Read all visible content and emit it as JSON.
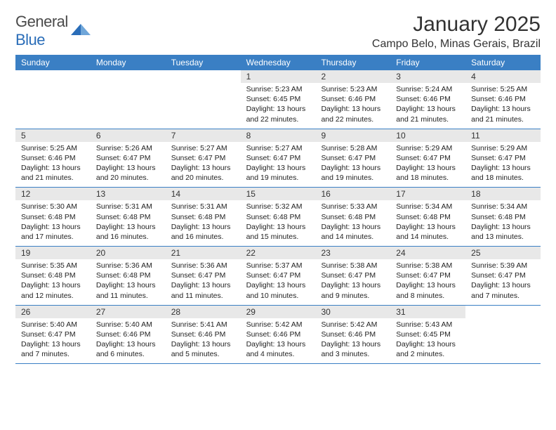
{
  "logo": {
    "text1": "General",
    "text2": "Blue"
  },
  "title": "January 2025",
  "location": "Campo Belo, Minas Gerais, Brazil",
  "colors": {
    "header_bg": "#3a7fc4",
    "header_text": "#ffffff",
    "daynum_bg": "#e8e8e8",
    "border": "#3a7fc4",
    "logo_gray": "#4a4a4a",
    "logo_blue": "#2a6db8"
  },
  "day_headers": [
    "Sunday",
    "Monday",
    "Tuesday",
    "Wednesday",
    "Thursday",
    "Friday",
    "Saturday"
  ],
  "weeks": [
    [
      {
        "n": "",
        "sr": "",
        "ss": "",
        "dl": ""
      },
      {
        "n": "",
        "sr": "",
        "ss": "",
        "dl": ""
      },
      {
        "n": "",
        "sr": "",
        "ss": "",
        "dl": ""
      },
      {
        "n": "1",
        "sr": "5:23 AM",
        "ss": "6:45 PM",
        "dl": "13 hours and 22 minutes."
      },
      {
        "n": "2",
        "sr": "5:23 AM",
        "ss": "6:46 PM",
        "dl": "13 hours and 22 minutes."
      },
      {
        "n": "3",
        "sr": "5:24 AM",
        "ss": "6:46 PM",
        "dl": "13 hours and 21 minutes."
      },
      {
        "n": "4",
        "sr": "5:25 AM",
        "ss": "6:46 PM",
        "dl": "13 hours and 21 minutes."
      }
    ],
    [
      {
        "n": "5",
        "sr": "5:25 AM",
        "ss": "6:46 PM",
        "dl": "13 hours and 21 minutes."
      },
      {
        "n": "6",
        "sr": "5:26 AM",
        "ss": "6:47 PM",
        "dl": "13 hours and 20 minutes."
      },
      {
        "n": "7",
        "sr": "5:27 AM",
        "ss": "6:47 PM",
        "dl": "13 hours and 20 minutes."
      },
      {
        "n": "8",
        "sr": "5:27 AM",
        "ss": "6:47 PM",
        "dl": "13 hours and 19 minutes."
      },
      {
        "n": "9",
        "sr": "5:28 AM",
        "ss": "6:47 PM",
        "dl": "13 hours and 19 minutes."
      },
      {
        "n": "10",
        "sr": "5:29 AM",
        "ss": "6:47 PM",
        "dl": "13 hours and 18 minutes."
      },
      {
        "n": "11",
        "sr": "5:29 AM",
        "ss": "6:47 PM",
        "dl": "13 hours and 18 minutes."
      }
    ],
    [
      {
        "n": "12",
        "sr": "5:30 AM",
        "ss": "6:48 PM",
        "dl": "13 hours and 17 minutes."
      },
      {
        "n": "13",
        "sr": "5:31 AM",
        "ss": "6:48 PM",
        "dl": "13 hours and 16 minutes."
      },
      {
        "n": "14",
        "sr": "5:31 AM",
        "ss": "6:48 PM",
        "dl": "13 hours and 16 minutes."
      },
      {
        "n": "15",
        "sr": "5:32 AM",
        "ss": "6:48 PM",
        "dl": "13 hours and 15 minutes."
      },
      {
        "n": "16",
        "sr": "5:33 AM",
        "ss": "6:48 PM",
        "dl": "13 hours and 14 minutes."
      },
      {
        "n": "17",
        "sr": "5:34 AM",
        "ss": "6:48 PM",
        "dl": "13 hours and 14 minutes."
      },
      {
        "n": "18",
        "sr": "5:34 AM",
        "ss": "6:48 PM",
        "dl": "13 hours and 13 minutes."
      }
    ],
    [
      {
        "n": "19",
        "sr": "5:35 AM",
        "ss": "6:48 PM",
        "dl": "13 hours and 12 minutes."
      },
      {
        "n": "20",
        "sr": "5:36 AM",
        "ss": "6:48 PM",
        "dl": "13 hours and 11 minutes."
      },
      {
        "n": "21",
        "sr": "5:36 AM",
        "ss": "6:47 PM",
        "dl": "13 hours and 11 minutes."
      },
      {
        "n": "22",
        "sr": "5:37 AM",
        "ss": "6:47 PM",
        "dl": "13 hours and 10 minutes."
      },
      {
        "n": "23",
        "sr": "5:38 AM",
        "ss": "6:47 PM",
        "dl": "13 hours and 9 minutes."
      },
      {
        "n": "24",
        "sr": "5:38 AM",
        "ss": "6:47 PM",
        "dl": "13 hours and 8 minutes."
      },
      {
        "n": "25",
        "sr": "5:39 AM",
        "ss": "6:47 PM",
        "dl": "13 hours and 7 minutes."
      }
    ],
    [
      {
        "n": "26",
        "sr": "5:40 AM",
        "ss": "6:47 PM",
        "dl": "13 hours and 7 minutes."
      },
      {
        "n": "27",
        "sr": "5:40 AM",
        "ss": "6:46 PM",
        "dl": "13 hours and 6 minutes."
      },
      {
        "n": "28",
        "sr": "5:41 AM",
        "ss": "6:46 PM",
        "dl": "13 hours and 5 minutes."
      },
      {
        "n": "29",
        "sr": "5:42 AM",
        "ss": "6:46 PM",
        "dl": "13 hours and 4 minutes."
      },
      {
        "n": "30",
        "sr": "5:42 AM",
        "ss": "6:46 PM",
        "dl": "13 hours and 3 minutes."
      },
      {
        "n": "31",
        "sr": "5:43 AM",
        "ss": "6:45 PM",
        "dl": "13 hours and 2 minutes."
      },
      {
        "n": "",
        "sr": "",
        "ss": "",
        "dl": ""
      }
    ]
  ],
  "labels": {
    "sunrise": "Sunrise:",
    "sunset": "Sunset:",
    "daylight": "Daylight:"
  }
}
